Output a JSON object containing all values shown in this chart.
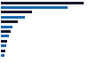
{
  "values": [
    188.3,
    151.9,
    70.9,
    55.6,
    40.1,
    28.0,
    23.2,
    19.4,
    16.0,
    13.2,
    10.5,
    8.8,
    1.5
  ],
  "colors": [
    "#1a1a2e",
    "#1c6bb5",
    "#1a1a2e",
    "#1c6bb5",
    "#1a1a2e",
    "#1c6bb5",
    "#1a1a2e",
    "#1c6bb5",
    "#1a1a2e",
    "#1c6bb5",
    "#1a1a2e",
    "#1c6bb5",
    "#1c6bb5"
  ],
  "bg_color": "#ffffff",
  "bar_height": 0.55,
  "xlim": 200
}
